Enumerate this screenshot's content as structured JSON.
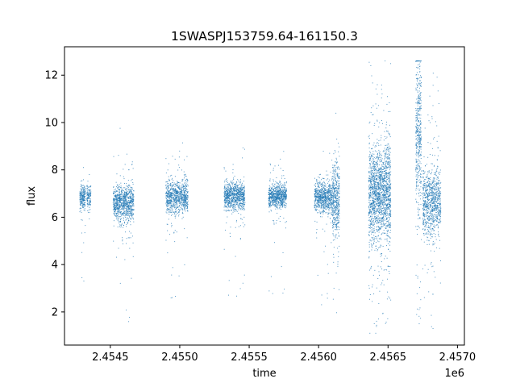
{
  "chart_data": {
    "type": "scatter",
    "title": "1SWASPJ153759.64-161150.3",
    "xlabel": "time",
    "ylabel": "flux",
    "x_offset_label": "1e6",
    "xlim": [
      2.45417,
      2.45705
    ],
    "ylim": [
      0.6,
      13.2
    ],
    "x_ticks": [
      2.4545,
      2.455,
      2.4555,
      2.456,
      2.4565,
      2.457
    ],
    "x_tick_labels": [
      "2.4545",
      "2.4550",
      "2.4555",
      "2.4560",
      "2.4565",
      "2.4570"
    ],
    "y_ticks": [
      2,
      4,
      6,
      8,
      10,
      12
    ],
    "y_tick_labels": [
      "2",
      "4",
      "6",
      "8",
      "10",
      "12"
    ],
    "grid": false,
    "point_color": "#1f77b4",
    "series": [
      {
        "clusters": [
          {
            "x_start": 2.45428,
            "x_end": 2.45432,
            "center": 6.85,
            "spread": 0.35,
            "outlier_min": 3.2,
            "outlier_max": 9.0,
            "count": 220
          },
          {
            "x_start": 2.45433,
            "x_end": 2.45436,
            "center": 6.9,
            "spread": 0.3,
            "outlier_min": 5.5,
            "outlier_max": 8.2,
            "count": 120
          },
          {
            "x_start": 2.45452,
            "x_end": 2.45467,
            "center": 6.6,
            "spread": 0.5,
            "outlier_min": 1.2,
            "outlier_max": 10.8,
            "count": 900
          },
          {
            "x_start": 2.4549,
            "x_end": 2.45506,
            "center": 6.85,
            "spread": 0.45,
            "outlier_min": 2.3,
            "outlier_max": 9.3,
            "count": 850
          },
          {
            "x_start": 2.45532,
            "x_end": 2.45547,
            "center": 6.9,
            "spread": 0.4,
            "outlier_min": 2.5,
            "outlier_max": 9.4,
            "count": 850
          },
          {
            "x_start": 2.45564,
            "x_end": 2.45577,
            "center": 6.9,
            "spread": 0.35,
            "outlier_min": 2.7,
            "outlier_max": 8.8,
            "count": 750
          },
          {
            "x_start": 2.45597,
            "x_end": 2.4561,
            "center": 6.85,
            "spread": 0.45,
            "outlier_min": 2.1,
            "outlier_max": 8.9,
            "count": 750
          },
          {
            "x_start": 2.4561,
            "x_end": 2.45615,
            "center": 6.8,
            "spread": 1.1,
            "outlier_min": 1.8,
            "outlier_max": 10.4,
            "count": 450
          },
          {
            "x_start": 2.45636,
            "x_end": 2.45652,
            "center": 7.0,
            "spread": 1.4,
            "outlier_min": 1.1,
            "outlier_max": 12.6,
            "count": 1800
          },
          {
            "x_start": 2.4567,
            "x_end": 2.45674,
            "center": 9.5,
            "spread": 2.2,
            "outlier_min": 1.5,
            "outlier_max": 12.6,
            "count": 450
          },
          {
            "x_start": 2.45675,
            "x_end": 2.45688,
            "center": 6.6,
            "spread": 1.0,
            "outlier_min": 1.3,
            "outlier_max": 12.2,
            "count": 900
          }
        ]
      }
    ]
  }
}
